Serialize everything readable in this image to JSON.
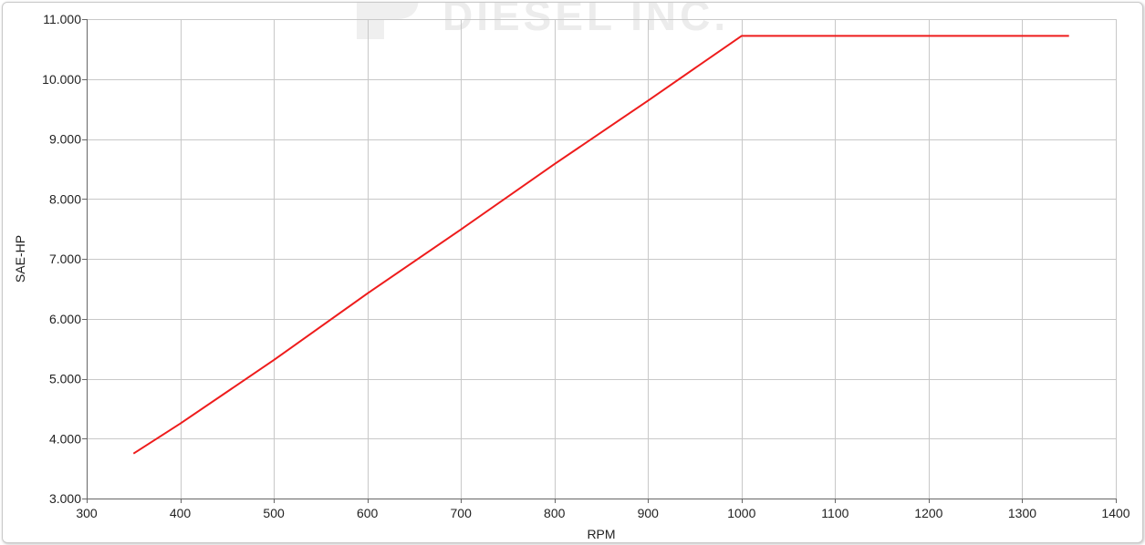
{
  "watermark": {
    "text": "DIESEL INC."
  },
  "colors": {
    "series": "#ee1c1c",
    "grid": "#c8c8c8",
    "axis": "#666666",
    "text": "#222222"
  },
  "chart_data": {
    "type": "line",
    "title": "",
    "xlabel": "RPM",
    "ylabel": "SAE-HP",
    "xlim": [
      300,
      1400
    ],
    "ylim": [
      3,
      11
    ],
    "x_ticks": [
      300,
      400,
      500,
      600,
      700,
      800,
      900,
      1000,
      1100,
      1200,
      1300,
      1400
    ],
    "x_tick_labels": [
      "300",
      "400",
      "500",
      "600",
      "700",
      "800",
      "900",
      "1000",
      "1100",
      "1200",
      "1300",
      "1400"
    ],
    "y_ticks": [
      3,
      4,
      5,
      6,
      7,
      8,
      9,
      10,
      11
    ],
    "y_tick_labels": [
      "3.000",
      "4.000",
      "5.000",
      "6.000",
      "7.000",
      "8.000",
      "9.000",
      "10.000",
      "11.000"
    ],
    "grid": true,
    "legend": "none",
    "series": [
      {
        "x": [
          350,
          400,
          500,
          600,
          700,
          800,
          900,
          1000,
          1100,
          1200,
          1300,
          1350
        ],
        "y": [
          3.75,
          4.25,
          5.31,
          6.42,
          7.49,
          8.58,
          9.64,
          10.72,
          10.72,
          10.72,
          10.72,
          10.72
        ]
      }
    ]
  }
}
